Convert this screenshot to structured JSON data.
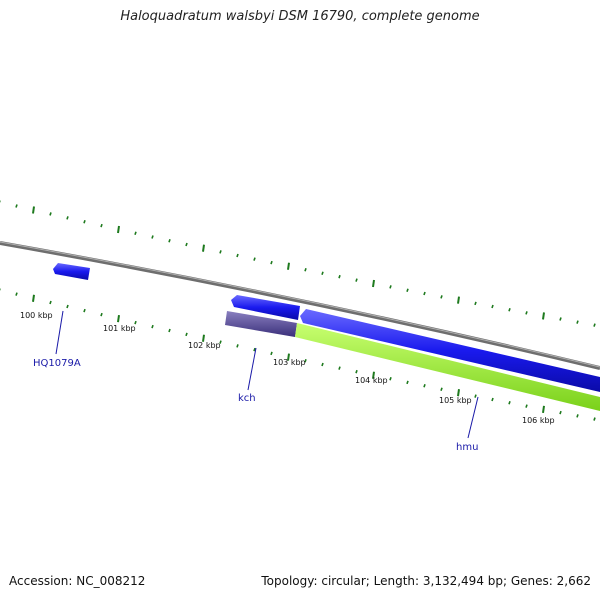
{
  "title": "Haloquadratum walsbyi DSM 16790, complete genome",
  "footer": {
    "accession": "Accession: NC_008212",
    "summary": "Topology: circular; Length: 3,132,494 bp; Genes: 2,662"
  },
  "tick_labels": [
    "100 kbp",
    "101 kbp",
    "102 kbp",
    "103 kbp",
    "104 kbp",
    "105 kbp",
    "106 kbp"
  ],
  "gene_labels": [
    "HQ1079A",
    "kch",
    "hmu"
  ],
  "colors": {
    "backbone": "#808080",
    "tick": "#1e7a1e",
    "gene": "#1a1ae6",
    "kch_feature": "#4a3f8c",
    "hmu_feature": "#9ae62a",
    "label": "#1a1aa8"
  }
}
